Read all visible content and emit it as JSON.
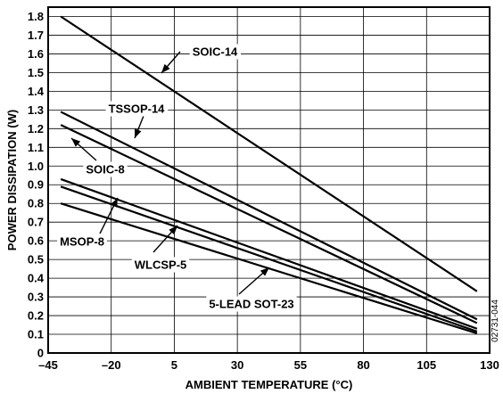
{
  "chart_data": {
    "type": "line",
    "xlabel": "AMBIENT TEMPERATURE (°C)",
    "ylabel": "POWER DISSIPATION (W)",
    "xlim": [
      -45,
      130
    ],
    "ylim": [
      0,
      1.85
    ],
    "x_ticks": [
      -45,
      -20,
      5,
      30,
      55,
      80,
      105,
      130
    ],
    "x_tick_labels": [
      "–45",
      "–20",
      "5",
      "30",
      "55",
      "80",
      "105",
      "130"
    ],
    "y_ticks": [
      0,
      0.1,
      0.2,
      0.3,
      0.4,
      0.5,
      0.6,
      0.7,
      0.8,
      0.9,
      1.0,
      1.1,
      1.2,
      1.3,
      1.4,
      1.5,
      1.6,
      1.7,
      1.8
    ],
    "y_tick_labels": [
      "0",
      "0.1",
      "0.2",
      "0.3",
      "0.4",
      "0.5",
      "0.6",
      "0.7",
      "0.8",
      "0.9",
      "1.0",
      "1.1",
      "1.2",
      "1.3",
      "1.4",
      "1.5",
      "1.6",
      "1.7",
      "1.8"
    ],
    "grid": true,
    "series": [
      {
        "name": "SOIC-14",
        "x": [
          -40,
          125
        ],
        "y": [
          1.8,
          0.33
        ]
      },
      {
        "name": "TSSOP-14",
        "x": [
          -40,
          125
        ],
        "y": [
          1.29,
          0.18
        ]
      },
      {
        "name": "SOIC-8",
        "x": [
          -40,
          125
        ],
        "y": [
          1.22,
          0.16
        ]
      },
      {
        "name": "MSOP-8",
        "x": [
          -40,
          125
        ],
        "y": [
          0.93,
          0.13
        ]
      },
      {
        "name": "WLCSP-5",
        "x": [
          -40,
          125
        ],
        "y": [
          0.89,
          0.115
        ]
      },
      {
        "name": "5-LEAD SOT-23",
        "x": [
          -40,
          125
        ],
        "y": [
          0.8,
          0.105
        ]
      }
    ],
    "annotations": [
      "SOIC-14",
      "TSSOP-14",
      "SOIC-8",
      "MSOP-8",
      "WLCSP-5",
      "5-LEAD SOT-23"
    ],
    "figure_code": "02731-044"
  }
}
